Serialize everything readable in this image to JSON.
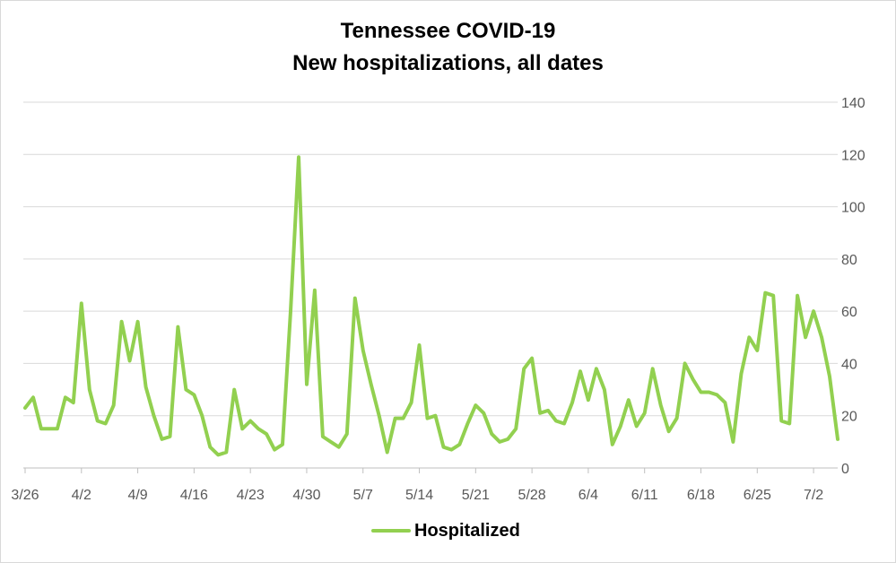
{
  "chart_data": {
    "type": "line",
    "title": "Tennessee COVID-19",
    "subtitle": "New hospitalizations, all dates",
    "xlabel": "",
    "ylabel": "",
    "ylim": [
      0,
      140
    ],
    "y_ticks": [
      0,
      20,
      40,
      60,
      80,
      100,
      120,
      140
    ],
    "y_axis_side": "right",
    "grid": true,
    "legend_position": "bottom",
    "x_tick_labels": [
      {
        "label": "3/26",
        "index": 0
      },
      {
        "label": "4/2",
        "index": 7
      },
      {
        "label": "4/9",
        "index": 14
      },
      {
        "label": "4/16",
        "index": 21
      },
      {
        "label": "4/23",
        "index": 28
      },
      {
        "label": "4/30",
        "index": 35
      },
      {
        "label": "5/7",
        "index": 42
      },
      {
        "label": "5/14",
        "index": 49
      },
      {
        "label": "5/21",
        "index": 56
      },
      {
        "label": "5/28",
        "index": 63
      },
      {
        "label": "6/4",
        "index": 70
      },
      {
        "label": "6/11",
        "index": 77
      },
      {
        "label": "6/18",
        "index": 84
      },
      {
        "label": "6/25",
        "index": 91
      },
      {
        "label": "7/2",
        "index": 98
      }
    ],
    "series": [
      {
        "name": "Hospitalized",
        "color": "#92d050",
        "values": [
          23,
          27,
          15,
          15,
          15,
          27,
          25,
          63,
          30,
          18,
          17,
          24,
          56,
          41,
          56,
          31,
          20,
          11,
          12,
          54,
          30,
          28,
          20,
          8,
          5,
          6,
          30,
          15,
          18,
          15,
          13,
          7,
          9,
          60,
          119,
          32,
          68,
          12,
          10,
          8,
          13,
          65,
          45,
          32,
          20,
          6,
          19,
          19,
          25,
          47,
          19,
          20,
          8,
          7,
          9,
          17,
          24,
          21,
          13,
          10,
          11,
          15,
          38,
          42,
          21,
          22,
          18,
          17,
          25,
          37,
          26,
          38,
          30,
          9,
          16,
          26,
          16,
          21,
          38,
          24,
          14,
          19,
          40,
          34,
          29,
          29,
          28,
          25,
          10,
          36,
          50,
          45,
          67,
          66,
          18,
          17,
          66,
          50,
          60,
          50,
          35,
          11
        ]
      }
    ]
  }
}
